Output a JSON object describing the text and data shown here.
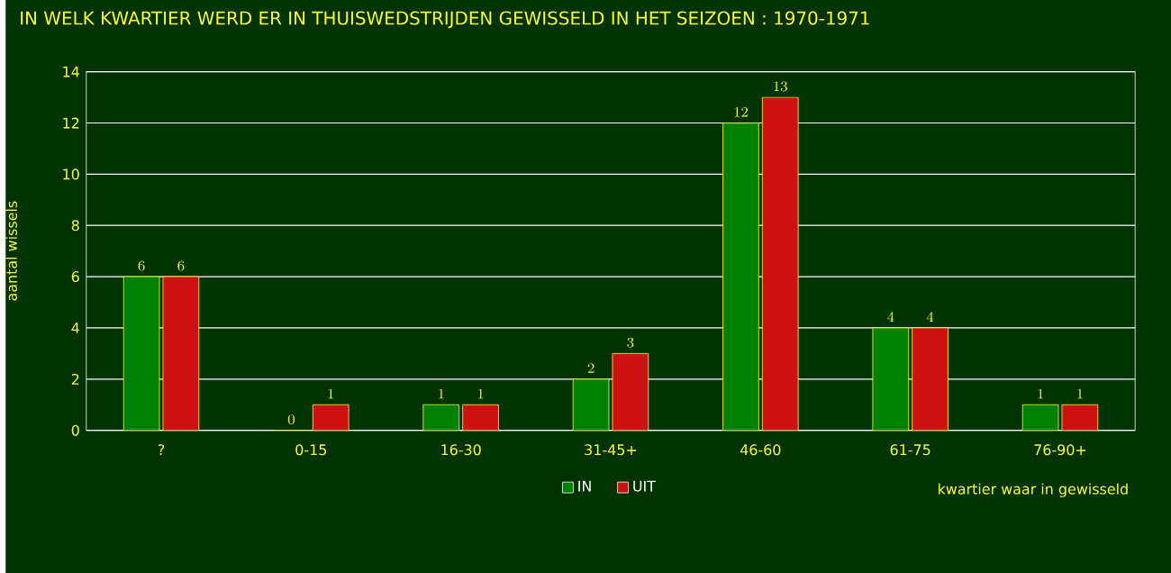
{
  "chart_data": {
    "type": "bar",
    "title": "IN WELK KWARTIER WERD ER IN THUISWEDSTRIJDEN GEWISSELD IN HET SEIZOEN : 1970-1971",
    "categories": [
      "?",
      "0-15",
      "16-30",
      "31-45+",
      "46-60",
      "61-75",
      "76-90+"
    ],
    "series": [
      {
        "name": "IN",
        "color": "#008000",
        "values": [
          6,
          0,
          1,
          2,
          12,
          4,
          1
        ]
      },
      {
        "name": "UIT",
        "color": "#cc1111",
        "values": [
          6,
          1,
          1,
          3,
          13,
          4,
          1
        ]
      }
    ],
    "xlabel": "kwartier waar in gewisseld",
    "ylabel": "aantal wissels",
    "ylim": [
      0,
      14
    ],
    "yticks": [
      0,
      2,
      4,
      6,
      8,
      10,
      12,
      14
    ],
    "grid": "y",
    "legend": "bottom",
    "data_labels": true
  }
}
